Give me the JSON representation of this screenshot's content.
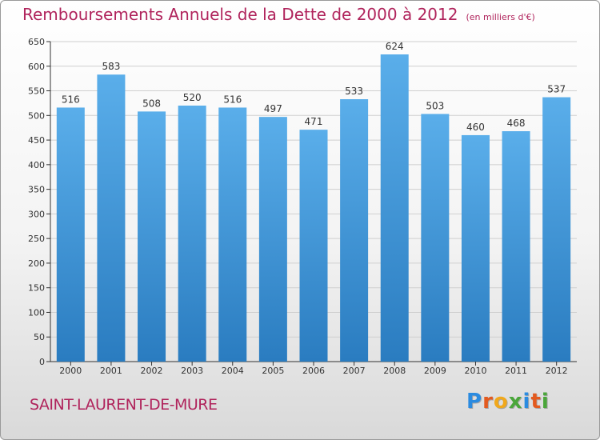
{
  "header": {
    "title": "Remboursements Annuels de la Dette de 2000 à 2012",
    "unit": "(en milliers d'€)"
  },
  "footer": {
    "place": "SAINT-LAURENT-DE-MURE",
    "logo_letters": [
      "P",
      "r",
      "o",
      "x",
      "i",
      "t",
      "i"
    ],
    "logo_colors": [
      "#2b8be0",
      "#e35a1f",
      "#f0a81c",
      "#4aa63a",
      "#2b8be0",
      "#e35a1f",
      "#4aa63a"
    ]
  },
  "colors": {
    "bar_top": "#5aaeea",
    "bar_bottom": "#2a7cc0",
    "grid": "#cfcfcf",
    "title": "#b0245c"
  },
  "chart_data": {
    "type": "bar",
    "title": "Remboursements Annuels de la Dette de 2000 à 2012",
    "subtitle": "(en milliers d'€)",
    "categories": [
      "2000",
      "2001",
      "2002",
      "2003",
      "2004",
      "2005",
      "2006",
      "2007",
      "2008",
      "2009",
      "2010",
      "2011",
      "2012"
    ],
    "values": [
      516,
      583,
      508,
      520,
      516,
      497,
      471,
      533,
      624,
      503,
      460,
      468,
      537
    ],
    "ylim": [
      0,
      650
    ],
    "yticks": [
      0,
      50,
      100,
      150,
      200,
      250,
      300,
      350,
      400,
      450,
      500,
      550,
      600,
      650
    ],
    "grid": true,
    "data_labels": true
  }
}
